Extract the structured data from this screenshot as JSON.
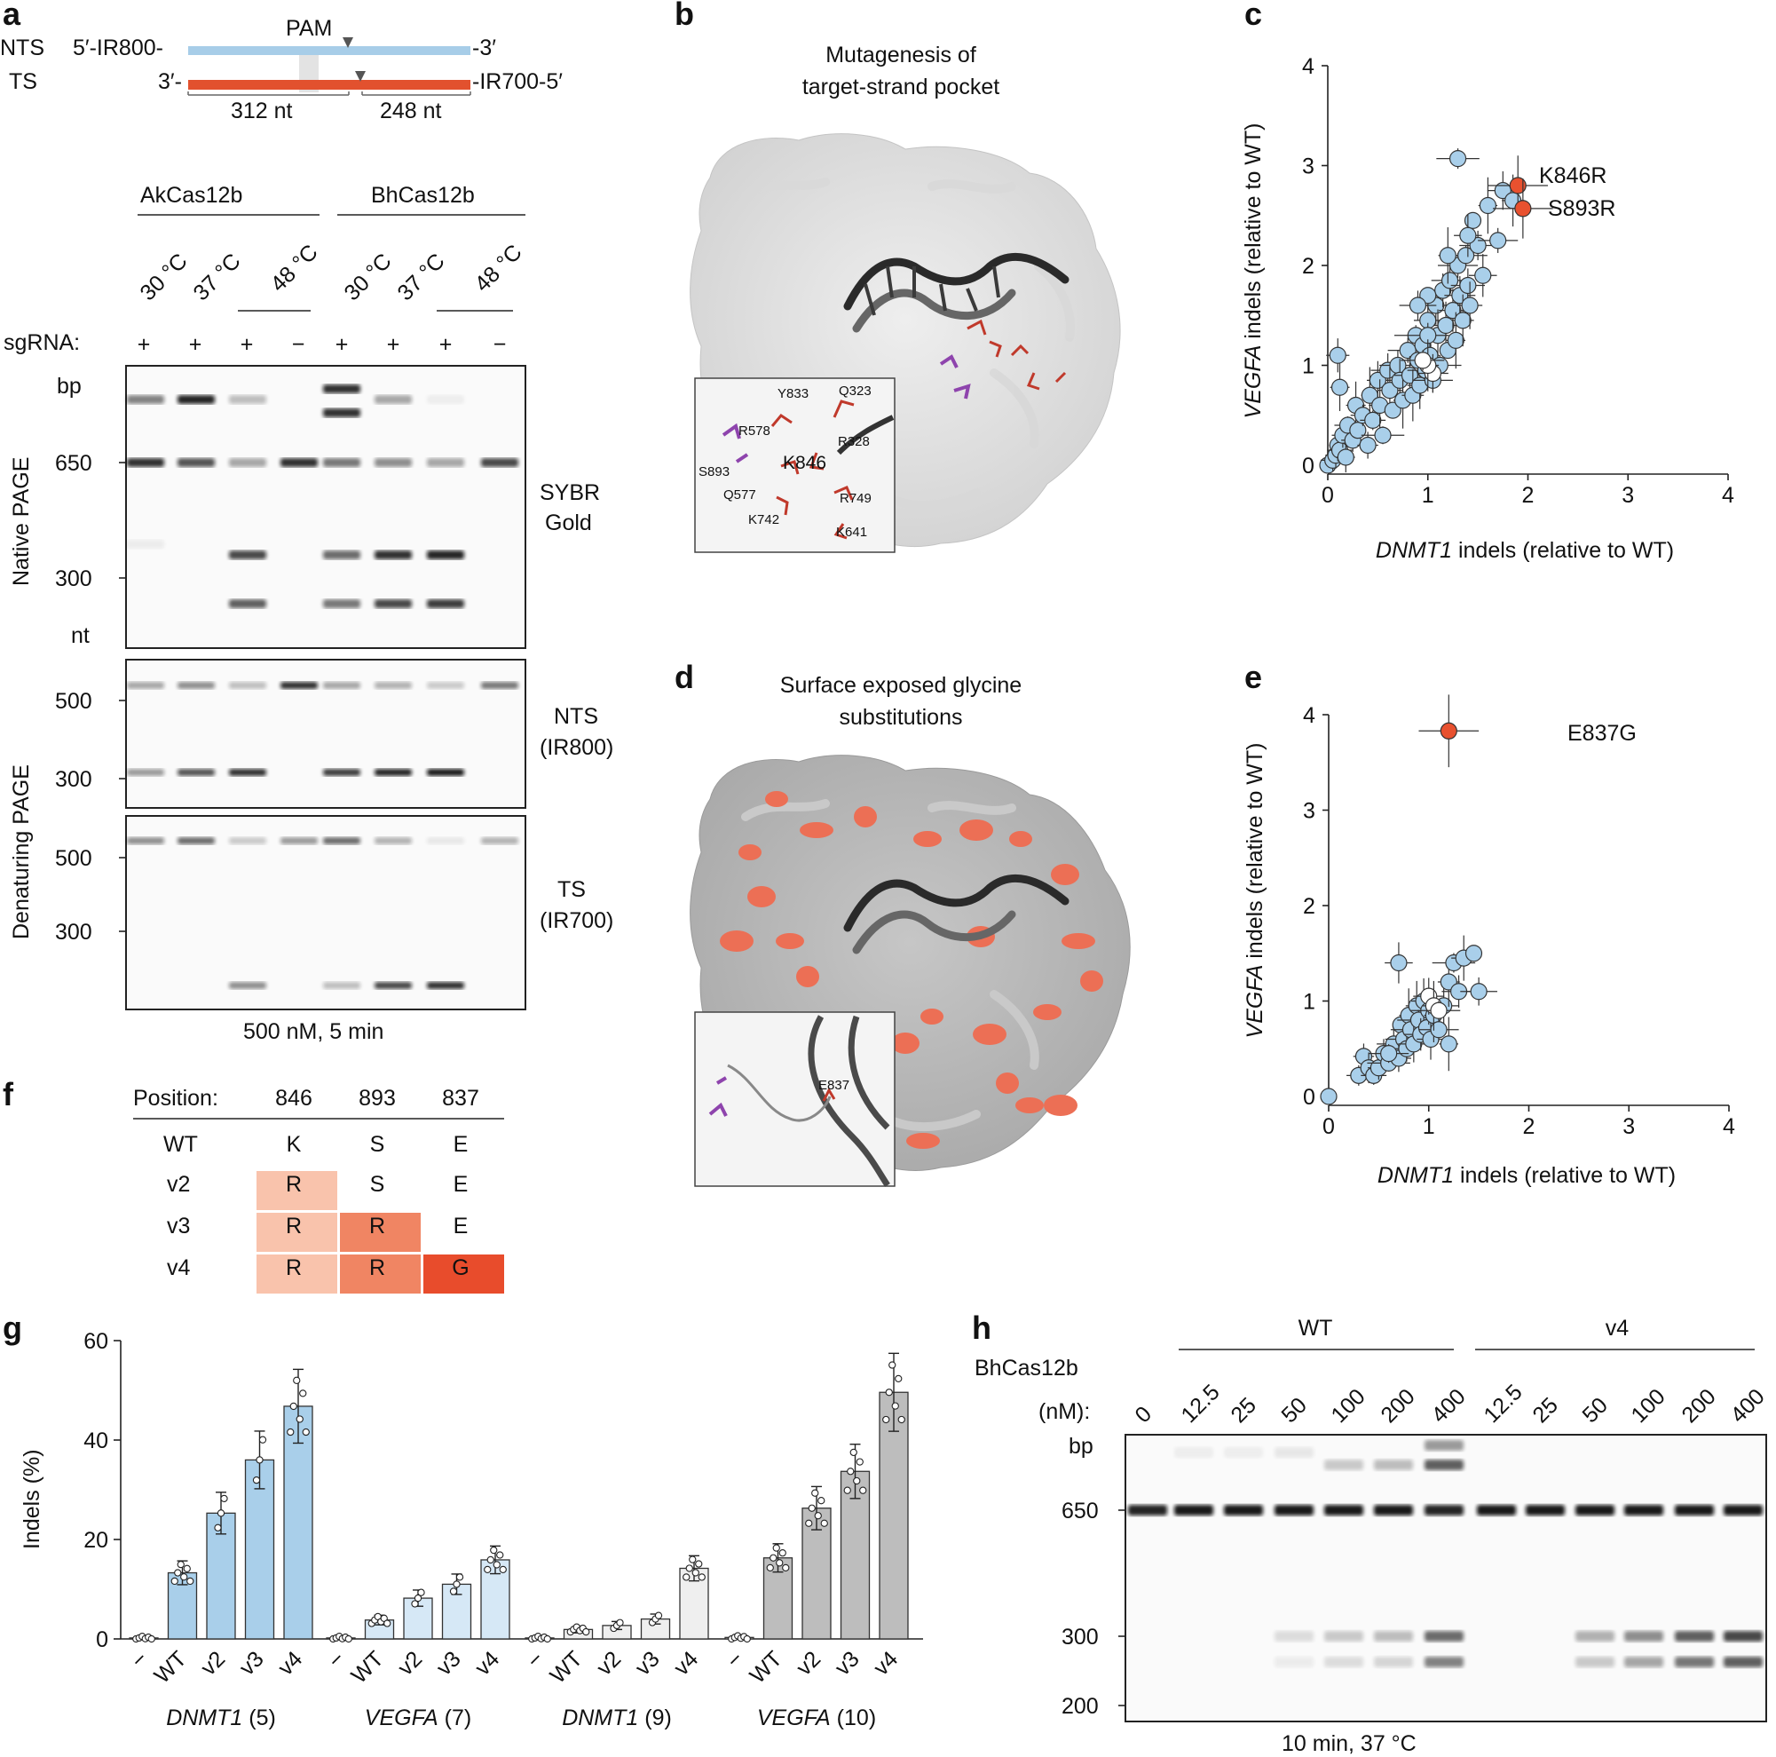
{
  "panel_a": {
    "letter": "a",
    "nts_label": "NTS",
    "ts_label": "TS",
    "nts_left": "5′-IR800-",
    "nts_right": "-3′",
    "ts_left": "3′-",
    "ts_right": "-IR700-5′",
    "pam": "PAM",
    "len_left": "312 nt",
    "len_right": "248 nt",
    "enzyme1": "AkCas12b",
    "enzyme2": "BhCas12b",
    "temps": [
      "30 °C",
      "37 °C",
      "48 °C",
      "30 °C",
      "37 °C",
      "48 °C"
    ],
    "sgrna_label": "sgRNA:",
    "sgrna_signs": [
      "+",
      "+",
      "+",
      "−",
      "+",
      "+",
      "+",
      "−"
    ],
    "bp_label": "bp",
    "nt_label": "nt",
    "native_ticks": [
      "650",
      "300"
    ],
    "denat_ticks_nts": [
      "500",
      "300"
    ],
    "denat_ticks_ts": [
      "500",
      "300"
    ],
    "native_label": "Native PAGE",
    "denat_label": "Denaturing PAGE",
    "stain1": "SYBR",
    "stain2": "Gold",
    "nts_side1": "NTS",
    "nts_side2": "(IR800)",
    "ts_side1": "TS",
    "ts_side2": "(IR700)",
    "footer": "500 nM, 5 min"
  },
  "panel_b": {
    "letter": "b",
    "title1": "Mutagenesis of",
    "title2": "target-strand pocket",
    "residues": [
      "Y833",
      "Q323",
      "R578",
      "R328",
      "K846",
      "S893",
      "Q577",
      "R749",
      "K742",
      "K641"
    ]
  },
  "panel_c": {
    "letter": "c",
    "xlabel_gene": "DNMT1",
    "xlabel_rest": " indels (relative to WT)",
    "ylabel_gene": "VEGFA",
    "ylabel_rest": " indels (relative to WT)",
    "ticks": [
      "0",
      "1",
      "2",
      "3",
      "4"
    ],
    "callout1": "K846R",
    "callout2": "S893R"
  },
  "panel_d": {
    "letter": "d",
    "title1": "Surface exposed glycine",
    "title2": "substitutions",
    "residue": "E837"
  },
  "panel_e": {
    "letter": "e",
    "xlabel_gene": "DNMT1",
    "xlabel_rest": " indels (relative to WT)",
    "ylabel_gene": "VEGFA",
    "ylabel_rest": " indels (relative to WT)",
    "ticks": [
      "0",
      "1",
      "2",
      "3",
      "4"
    ],
    "callout": "E837G"
  },
  "panel_f": {
    "letter": "f",
    "header_label": "Position:",
    "positions": [
      "846",
      "893",
      "837"
    ],
    "rows": [
      {
        "name": "WT",
        "cells": [
          "K",
          "S",
          "E"
        ]
      },
      {
        "name": "v2",
        "cells": [
          "R",
          "S",
          "E"
        ]
      },
      {
        "name": "v3",
        "cells": [
          "R",
          "R",
          "E"
        ]
      },
      {
        "name": "v4",
        "cells": [
          "R",
          "R",
          "G"
        ]
      }
    ]
  },
  "panel_g": {
    "letter": "g",
    "ylabel": "Indels (%)",
    "yticks": [
      "0",
      "20",
      "40",
      "60"
    ],
    "group_labels": [
      {
        "gene": "DNMT1",
        "site": " (5)"
      },
      {
        "gene": "VEGFA",
        "site": " (7)"
      },
      {
        "gene": "DNMT1",
        "site": " (9)"
      },
      {
        "gene": "VEGFA",
        "site": " (10)"
      }
    ],
    "bar_labels": [
      "−",
      "WT",
      "v2",
      "v3",
      "v4"
    ]
  },
  "panel_h": {
    "letter": "h",
    "wt_label": "WT",
    "v4_label": "v4",
    "enzyme": "BhCas12b",
    "conc_unit": "(nM):",
    "concs": [
      "0",
      "12.5",
      "25",
      "50",
      "100",
      "200",
      "400",
      "12.5",
      "25",
      "50",
      "100",
      "200",
      "400"
    ],
    "bp_label": "bp",
    "ticks": [
      "650",
      "300",
      "200"
    ],
    "footer": "10 min, 37 °C"
  },
  "chart_data": [
    {
      "type": "scatter",
      "panel": "c",
      "xlabel": "DNMT1 indels (relative to WT)",
      "ylabel": "VEGFA indels (relative to WT)",
      "xlim": [
        0,
        4
      ],
      "ylim": [
        0,
        4
      ],
      "highlighted": [
        {
          "name": "K846R",
          "x": 1.9,
          "y": 2.8
        },
        {
          "name": "S893R",
          "x": 1.95,
          "y": 2.57
        }
      ],
      "points": [
        [
          0,
          0
        ],
        [
          0.05,
          0.05
        ],
        [
          0.08,
          0.1
        ],
        [
          0.1,
          0.2
        ],
        [
          0.12,
          0.15
        ],
        [
          0.15,
          0.3
        ],
        [
          0.18,
          0.08
        ],
        [
          0.2,
          0.4
        ],
        [
          0.25,
          0.25
        ],
        [
          0.28,
          0.6
        ],
        [
          0.3,
          0.35
        ],
        [
          0.35,
          0.5
        ],
        [
          0.4,
          0.2
        ],
        [
          0.42,
          0.7
        ],
        [
          0.45,
          0.45
        ],
        [
          0.5,
          0.85
        ],
        [
          0.52,
          0.6
        ],
        [
          0.55,
          0.3
        ],
        [
          0.6,
          0.95
        ],
        [
          0.62,
          0.75
        ],
        [
          0.65,
          0.55
        ],
        [
          0.7,
          1.0
        ],
        [
          0.72,
          0.85
        ],
        [
          0.75,
          0.65
        ],
        [
          0.8,
          1.15
        ],
        [
          0.82,
          0.9
        ],
        [
          0.85,
          0.7
        ],
        [
          0.88,
          1.3
        ],
        [
          0.9,
          1.05
        ],
        [
          0.92,
          0.8
        ],
        [
          0.95,
          1.2
        ],
        [
          0.98,
          0.95
        ],
        [
          1.0,
          1.45
        ],
        [
          1.02,
          1.1
        ],
        [
          1.05,
          0.85
        ],
        [
          1.08,
          1.6
        ],
        [
          1.1,
          1.3
        ],
        [
          1.12,
          1.0
        ],
        [
          1.15,
          1.75
        ],
        [
          1.18,
          1.4
        ],
        [
          1.2,
          1.15
        ],
        [
          1.22,
          1.85
        ],
        [
          1.25,
          1.55
        ],
        [
          1.28,
          1.25
        ],
        [
          1.3,
          2.0
        ],
        [
          1.32,
          1.7
        ],
        [
          1.35,
          1.45
        ],
        [
          1.38,
          2.1
        ],
        [
          1.4,
          1.8
        ],
        [
          1.42,
          1.6
        ],
        [
          1.45,
          2.45
        ],
        [
          1.5,
          2.2
        ],
        [
          1.55,
          1.9
        ],
        [
          1.6,
          2.6
        ],
        [
          1.7,
          2.25
        ],
        [
          1.75,
          2.75
        ],
        [
          1.85,
          2.65
        ],
        [
          1.3,
          3.07
        ],
        [
          0.1,
          1.1
        ],
        [
          0.12,
          0.78
        ],
        [
          1.0,
          1.7
        ],
        [
          0.9,
          1.6
        ],
        [
          1.4,
          2.3
        ],
        [
          1.2,
          2.1
        ],
        [
          1.0,
          1.3
        ]
      ],
      "wt_points": [
        [
          1.05,
          0.92
        ],
        [
          1.0,
          1.0
        ],
        [
          0.95,
          1.05
        ]
      ]
    },
    {
      "type": "scatter",
      "panel": "e",
      "xlabel": "DNMT1 indels (relative to WT)",
      "ylabel": "VEGFA indels (relative to WT)",
      "xlim": [
        0,
        4
      ],
      "ylim": [
        0,
        4
      ],
      "highlighted": [
        {
          "name": "E837G",
          "x": 1.2,
          "y": 3.83
        }
      ],
      "points": [
        [
          0,
          0
        ],
        [
          0.3,
          0.22
        ],
        [
          0.35,
          0.42
        ],
        [
          0.4,
          0.3
        ],
        [
          0.45,
          0.22
        ],
        [
          0.5,
          0.3
        ],
        [
          0.55,
          0.45
        ],
        [
          0.6,
          0.35
        ],
        [
          0.65,
          0.55
        ],
        [
          0.7,
          0.4
        ],
        [
          0.72,
          0.75
        ],
        [
          0.75,
          0.6
        ],
        [
          0.78,
          0.5
        ],
        [
          0.8,
          0.85
        ],
        [
          0.82,
          0.7
        ],
        [
          0.85,
          0.55
        ],
        [
          0.88,
          0.95
        ],
        [
          0.9,
          0.8
        ],
        [
          0.92,
          0.65
        ],
        [
          0.95,
          1.0
        ],
        [
          0.98,
          0.72
        ],
        [
          1.0,
          0.9
        ],
        [
          1.02,
          0.6
        ],
        [
          1.05,
          0.85
        ],
        [
          1.1,
          0.7
        ],
        [
          1.15,
          0.95
        ],
        [
          1.2,
          1.2
        ],
        [
          1.25,
          1.4
        ],
        [
          1.3,
          1.1
        ],
        [
          1.35,
          1.45
        ],
        [
          1.45,
          1.5
        ],
        [
          1.5,
          1.1
        ],
        [
          0.7,
          1.4
        ],
        [
          1.2,
          0.55
        ],
        [
          0.6,
          0.45
        ]
      ],
      "wt_points": [
        [
          1.0,
          1.05
        ],
        [
          1.05,
          0.95
        ],
        [
          1.1,
          0.9
        ]
      ]
    },
    {
      "type": "bar",
      "panel": "g",
      "ylabel": "Indels (%)",
      "ylim": [
        0,
        60
      ],
      "categories": [
        "−",
        "WT",
        "v2",
        "v3",
        "v4"
      ],
      "series": [
        {
          "name": "DNMT1 (5)",
          "values": [
            0.2,
            13.3,
            25.3,
            36.0,
            46.8
          ]
        },
        {
          "name": "VEGFA (7)",
          "values": [
            0.2,
            3.8,
            8.2,
            11.0,
            15.9
          ]
        },
        {
          "name": "DNMT1 (9)",
          "values": [
            0.2,
            1.9,
            2.7,
            4.0,
            14.2
          ]
        },
        {
          "name": "VEGFA (10)",
          "values": [
            0.3,
            16.3,
            26.3,
            33.7,
            49.6
          ]
        }
      ]
    }
  ],
  "colors": {
    "light_blue": "#a9cfea",
    "pale_blue": "#d6e8f6",
    "red": "#e8512f",
    "salmon": "#f5a185",
    "pink": "#f9c3ac",
    "gray_bar": "#bdbdbd",
    "light_gray_bar": "#e6e6e6",
    "nts_strand": "#a7cde8",
    "ts_strand": "#e2512e"
  }
}
